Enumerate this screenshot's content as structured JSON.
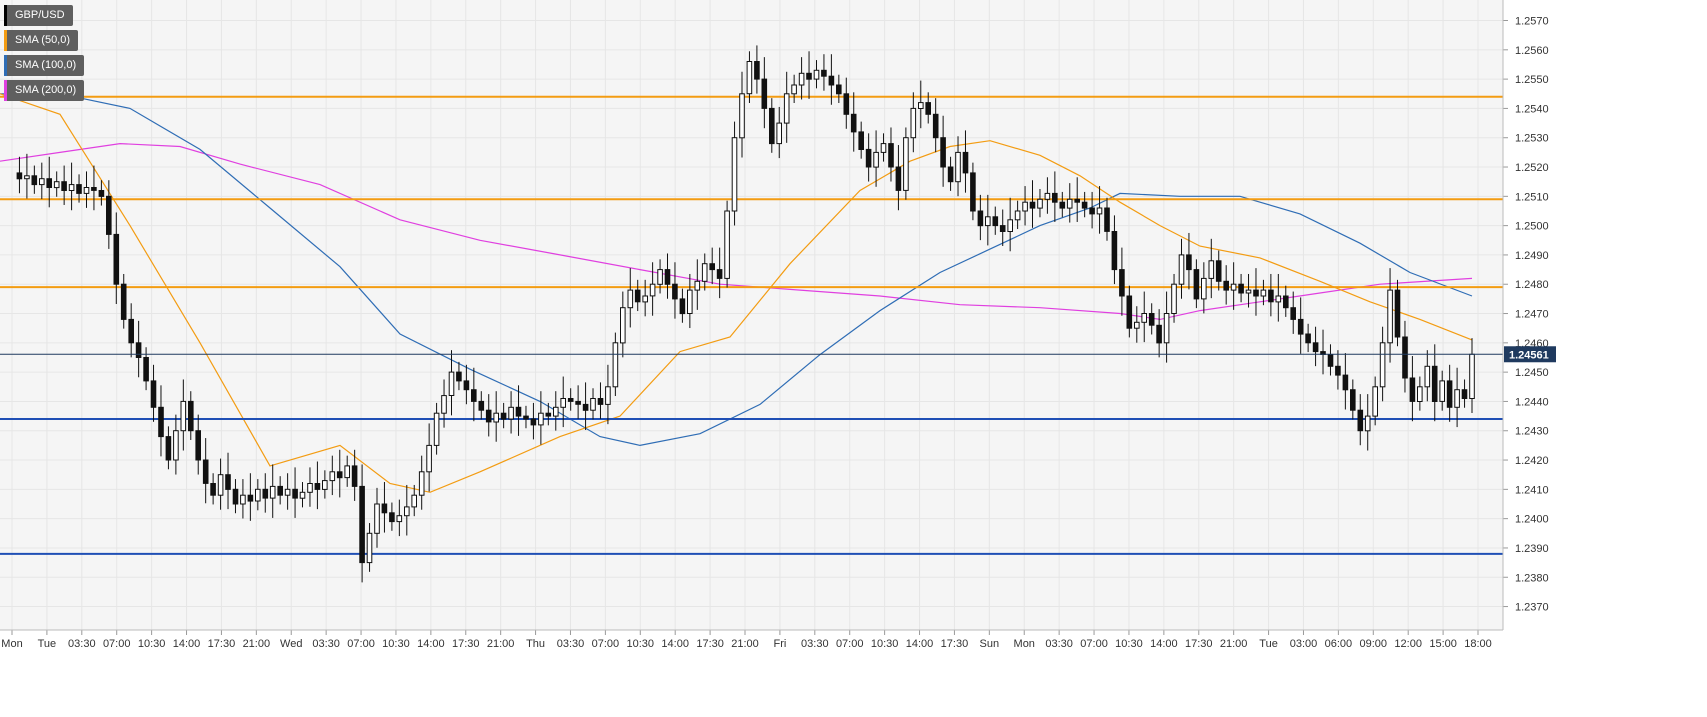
{
  "chart_data": {
    "type": "candlestick",
    "symbol": "GBP/USD",
    "legend": [
      {
        "label": "GBP/USD",
        "color": "#000000"
      },
      {
        "label": "SMA (50,0)",
        "color": "#f39c12"
      },
      {
        "label": "SMA (100,0)",
        "color": "#2f6db5"
      },
      {
        "label": "SMA (200,0)",
        "color": "#e040e0"
      }
    ],
    "x_tick_labels": [
      "Mon",
      "Tue",
      "03:30",
      "07:00",
      "10:30",
      "14:00",
      "17:30",
      "21:00",
      "Wed",
      "03:30",
      "07:00",
      "10:30",
      "14:00",
      "17:30",
      "21:00",
      "Thu",
      "03:30",
      "07:00",
      "10:30",
      "14:00",
      "17:30",
      "21:00",
      "Fri",
      "03:30",
      "07:00",
      "10:30",
      "14:00",
      "17:30",
      "Sun",
      "Mon",
      "03:30",
      "07:00",
      "10:30",
      "14:00",
      "17:30",
      "21:00",
      "Tue",
      "03:00",
      "06:00",
      "09:00",
      "12:00",
      "15:00",
      "18:00"
    ],
    "y_tick_labels": [
      "1.2570",
      "1.2560",
      "1.2550",
      "1.2540",
      "1.2530",
      "1.2520",
      "1.2510",
      "1.2500",
      "1.2490",
      "1.2480",
      "1.2470",
      "1.2460",
      "1.2450",
      "1.2440",
      "1.2430",
      "1.2420",
      "1.2410",
      "1.2400",
      "1.2390",
      "1.2380",
      "1.2370"
    ],
    "ylim": [
      1.2362,
      1.2577
    ],
    "grid": true,
    "current_price": 1.24561,
    "current_price_label": "1.24561",
    "current_price_color": "#1f3a5f",
    "horizontal_levels": [
      {
        "value": 1.2544,
        "color": "#f39c12"
      },
      {
        "value": 1.2509,
        "color": "#f39c12"
      },
      {
        "value": 1.2479,
        "color": "#f39c12"
      },
      {
        "value": 1.2434,
        "color": "#1f4fb5"
      },
      {
        "value": 1.2388,
        "color": "#1f4fb5"
      }
    ],
    "price_path": [
      1.2518,
      1.2516,
      1.2517,
      1.2514,
      1.2516,
      1.2513,
      1.2515,
      1.2512,
      1.2514,
      1.2511,
      1.2513,
      1.2512,
      1.251,
      1.2497,
      1.248,
      1.2468,
      1.246,
      1.2455,
      1.2447,
      1.2438,
      1.2428,
      1.242,
      1.243,
      1.244,
      1.243,
      1.242,
      1.2412,
      1.2408,
      1.2415,
      1.241,
      1.2405,
      1.2408,
      1.2406,
      1.241,
      1.2407,
      1.2411,
      1.2408,
      1.241,
      1.2407,
      1.2409,
      1.2412,
      1.241,
      1.2413,
      1.2416,
      1.2414,
      1.2418,
      1.2411,
      1.2385,
      1.2395,
      1.2405,
      1.2402,
      1.2399,
      1.2401,
      1.2404,
      1.2408,
      1.2416,
      1.2425,
      1.2436,
      1.2442,
      1.245,
      1.2447,
      1.2444,
      1.244,
      1.2437,
      1.2433,
      1.2436,
      1.2434,
      1.2438,
      1.2435,
      1.2434,
      1.2432,
      1.2436,
      1.2435,
      1.2438,
      1.2441,
      1.244,
      1.2439,
      1.2437,
      1.2441,
      1.2439,
      1.2445,
      1.246,
      1.2472,
      1.2478,
      1.2474,
      1.2476,
      1.248,
      1.2485,
      1.248,
      1.2475,
      1.247,
      1.2478,
      1.2481,
      1.2487,
      1.2485,
      1.2482,
      1.2505,
      1.253,
      1.2545,
      1.2556,
      1.255,
      1.254,
      1.2528,
      1.2535,
      1.2545,
      1.2548,
      1.2552,
      1.255,
      1.2553,
      1.2551,
      1.2548,
      1.2545,
      1.2538,
      1.2532,
      1.2526,
      1.252,
      1.2525,
      1.2528,
      1.252,
      1.2512,
      1.253,
      1.254,
      1.2542,
      1.2538,
      1.253,
      1.252,
      1.2515,
      1.2525,
      1.2518,
      1.2505,
      1.25,
      1.2503,
      1.25,
      1.2498,
      1.2502,
      1.2505,
      1.2508,
      1.2506,
      1.2509,
      1.2511,
      1.2508,
      1.2506,
      1.2509,
      1.2508,
      1.2506,
      1.2504,
      1.2506,
      1.2498,
      1.2485,
      1.2476,
      1.2465,
      1.2467,
      1.247,
      1.2466,
      1.246,
      1.247,
      1.248,
      1.249,
      1.2485,
      1.2475,
      1.2482,
      1.2488,
      1.2481,
      1.2478,
      1.248,
      1.2477,
      1.2478,
      1.2476,
      1.2478,
      1.2474,
      1.2476,
      1.2472,
      1.2468,
      1.2463,
      1.246,
      1.2457,
      1.2456,
      1.2452,
      1.2449,
      1.2444,
      1.2437,
      1.243,
      1.2435,
      1.2445,
      1.246,
      1.2478,
      1.2462,
      1.2448,
      1.244,
      1.2445,
      1.2452,
      1.244,
      1.2447,
      1.2438,
      1.2444,
      1.2441,
      1.24561
    ],
    "sma_50": [
      [
        0,
        1.2545
      ],
      [
        60,
        1.2538
      ],
      [
        130,
        1.25
      ],
      [
        200,
        1.246
      ],
      [
        270,
        1.2418
      ],
      [
        340,
        1.2425
      ],
      [
        390,
        1.2412
      ],
      [
        430,
        1.2409
      ],
      [
        480,
        1.2416
      ],
      [
        560,
        1.2428
      ],
      [
        620,
        1.2435
      ],
      [
        680,
        1.2457
      ],
      [
        730,
        1.2462
      ],
      [
        790,
        1.2487
      ],
      [
        860,
        1.2512
      ],
      [
        910,
        1.2522
      ],
      [
        950,
        1.2527
      ],
      [
        990,
        1.2529
      ],
      [
        1040,
        1.2524
      ],
      [
        1080,
        1.2517
      ],
      [
        1120,
        1.2508
      ],
      [
        1160,
        1.25
      ],
      [
        1200,
        1.2493
      ],
      [
        1260,
        1.2489
      ],
      [
        1320,
        1.2481
      ],
      [
        1370,
        1.2474
      ],
      [
        1420,
        1.2468
      ],
      [
        1472,
        1.2461
      ]
    ],
    "sma_100": [
      [
        0,
        1.2545
      ],
      [
        60,
        1.2545
      ],
      [
        130,
        1.254
      ],
      [
        200,
        1.2526
      ],
      [
        270,
        1.2506
      ],
      [
        340,
        1.2486
      ],
      [
        400,
        1.2463
      ],
      [
        470,
        1.2451
      ],
      [
        540,
        1.244
      ],
      [
        600,
        1.2428
      ],
      [
        640,
        1.2425
      ],
      [
        700,
        1.2429
      ],
      [
        760,
        1.2439
      ],
      [
        820,
        1.2456
      ],
      [
        880,
        1.2471
      ],
      [
        940,
        1.2484
      ],
      [
        990,
        1.2492
      ],
      [
        1040,
        1.25
      ],
      [
        1090,
        1.2506
      ],
      [
        1120,
        1.2511
      ],
      [
        1180,
        1.251
      ],
      [
        1240,
        1.251
      ],
      [
        1300,
        1.2504
      ],
      [
        1360,
        1.2494
      ],
      [
        1410,
        1.2484
      ],
      [
        1472,
        1.2476
      ]
    ],
    "sma_200": [
      [
        0,
        1.2522
      ],
      [
        60,
        1.2525
      ],
      [
        120,
        1.2528
      ],
      [
        180,
        1.2527
      ],
      [
        240,
        1.2521
      ],
      [
        320,
        1.2514
      ],
      [
        400,
        1.2502
      ],
      [
        480,
        1.2495
      ],
      [
        560,
        1.249
      ],
      [
        640,
        1.2485
      ],
      [
        720,
        1.248
      ],
      [
        800,
        1.2478
      ],
      [
        880,
        1.2476
      ],
      [
        960,
        1.2473
      ],
      [
        1040,
        1.2472
      ],
      [
        1120,
        1.247
      ],
      [
        1160,
        1.2468
      ],
      [
        1200,
        1.2471
      ],
      [
        1260,
        1.2474
      ],
      [
        1320,
        1.2477
      ],
      [
        1380,
        1.248
      ],
      [
        1472,
        1.2482
      ]
    ]
  }
}
